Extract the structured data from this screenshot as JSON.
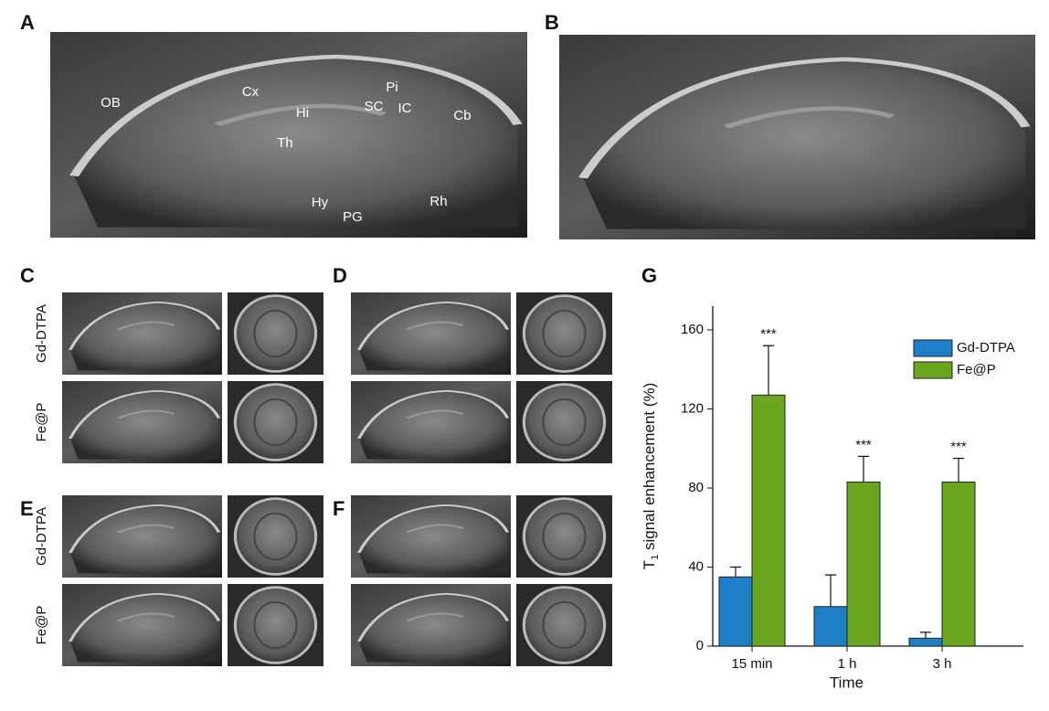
{
  "panels": {
    "A": "A",
    "B": "B",
    "C": "C",
    "D": "D",
    "E": "E",
    "F": "F",
    "G": "G"
  },
  "regions": [
    "OB",
    "Cx",
    "Hi",
    "Th",
    "Pi",
    "SC",
    "IC",
    "Cb",
    "Hy",
    "PG",
    "Rh"
  ],
  "row_labels": [
    "Gd-DTPA",
    "Fe@P"
  ],
  "chart_data": {
    "type": "bar",
    "xlabel": "Time",
    "ylabel": {
      "main": "T",
      "sub": "1",
      "rest": " signal enhancement (%)"
    },
    "categories": [
      "15 min",
      "1 h",
      "3 h"
    ],
    "series": [
      {
        "name": "Gd-DTPA",
        "color": "#1f7fc6",
        "values": [
          35,
          20,
          4
        ],
        "errors": [
          5,
          16,
          3
        ]
      },
      {
        "name": "Fe@P",
        "color": "#6aa61e",
        "values": [
          127,
          83,
          83
        ],
        "errors": [
          25,
          13,
          12
        ]
      }
    ],
    "significance": [
      "***",
      "***",
      "***"
    ],
    "ylim": [
      0,
      172
    ],
    "yticks": [
      0,
      40,
      80,
      120,
      160
    ]
  }
}
